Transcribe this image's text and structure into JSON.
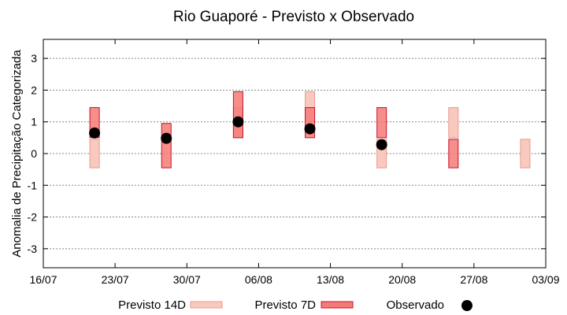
{
  "chart_data": {
    "type": "range-bar",
    "title": "Rio Guaporé - Previsto x Observado",
    "xlabel": "",
    "ylabel": "Anomalia de Precipitação Categorizada",
    "ylim": [
      -3.6,
      3.6
    ],
    "yticks": [
      -3,
      -2,
      -1,
      0,
      1,
      2,
      3
    ],
    "xlim": [
      "2000-07-16",
      "2000-09-03"
    ],
    "xticks": [
      "16/07",
      "23/07",
      "30/07",
      "06/08",
      "13/08",
      "20/08",
      "27/08",
      "03/09"
    ],
    "grid": {
      "y": true,
      "x": false
    },
    "legend_position": "bottom",
    "colors": {
      "previsto_14d_fill": "#f9c9bf",
      "previsto_14d_stroke": "#e8998a",
      "previsto_7d_fill": "#f47a75",
      "previsto_7d_stroke": "#c8102e",
      "observado": "#000000"
    },
    "series": [
      {
        "name": "Previsto 14D",
        "kind": "range",
        "points": [
          {
            "x": "21/07",
            "low": -0.45,
            "high": 0.45
          },
          {
            "x": "04/08",
            "low": 0.5,
            "high": 1.45
          },
          {
            "x": "11/08",
            "low": 1.0,
            "high": 1.95
          },
          {
            "x": "18/08",
            "low": -0.45,
            "high": 0.45
          },
          {
            "x": "25/08",
            "low": 0.5,
            "high": 1.45
          },
          {
            "x": "01/09",
            "low": -0.45,
            "high": 0.45
          }
        ]
      },
      {
        "name": "Previsto 7D",
        "kind": "range",
        "points": [
          {
            "x": "21/07",
            "low": 0.5,
            "high": 1.45
          },
          {
            "x": "28/07",
            "low": -0.45,
            "high": 0.95
          },
          {
            "x": "04/08",
            "low": 0.5,
            "high": 1.95
          },
          {
            "x": "11/08",
            "low": 0.5,
            "high": 1.45
          },
          {
            "x": "18/08",
            "low": 0.5,
            "high": 1.45
          },
          {
            "x": "25/08",
            "low": -0.45,
            "high": 0.45
          }
        ]
      },
      {
        "name": "Observado",
        "kind": "point",
        "points": [
          {
            "x": "21/07",
            "y": 0.65
          },
          {
            "x": "28/07",
            "y": 0.48
          },
          {
            "x": "04/08",
            "y": 1.0
          },
          {
            "x": "11/08",
            "y": 0.78
          },
          {
            "x": "18/08",
            "y": 0.28
          }
        ]
      }
    ]
  }
}
